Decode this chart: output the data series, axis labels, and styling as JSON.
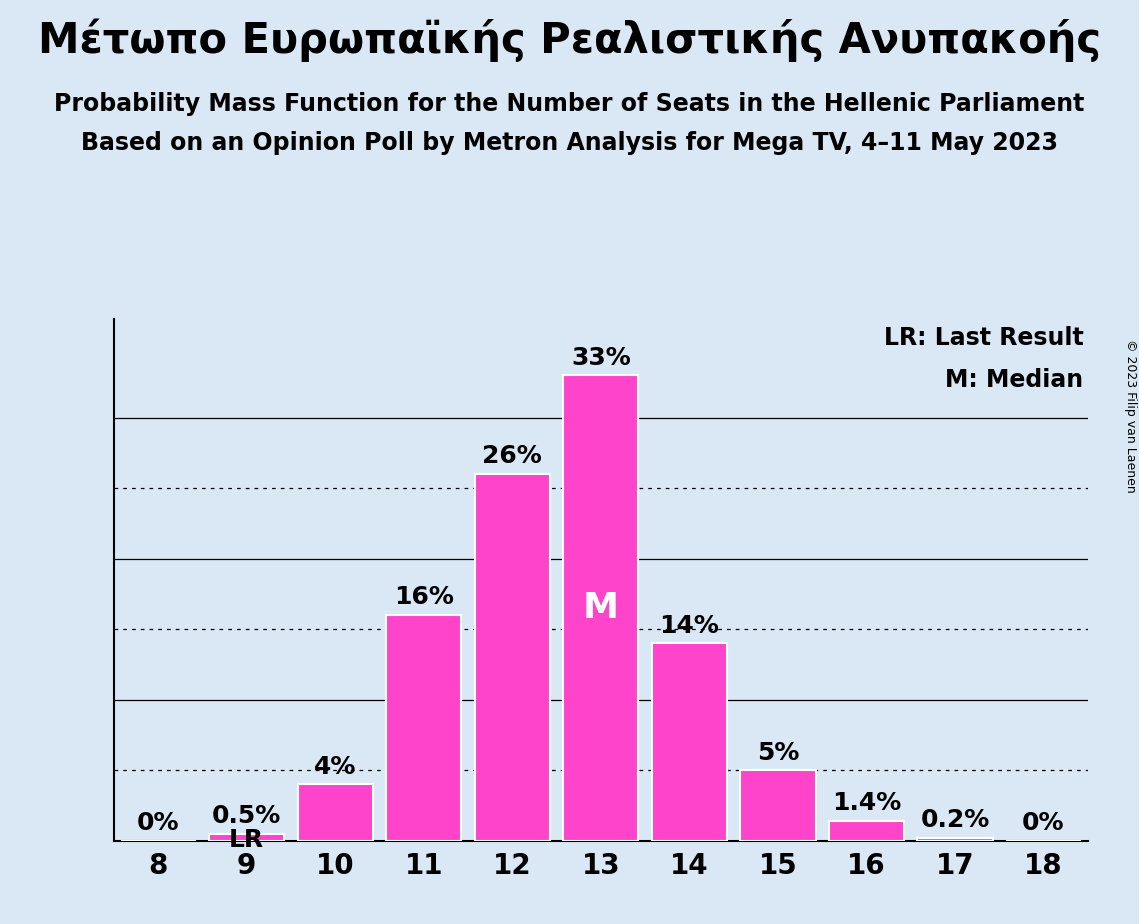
{
  "title_greek": "Μέτωπο Ευρωπαϊκής Ρεαλιστικής Ανυπακοής",
  "subtitle1": "Probability Mass Function for the Number of Seats in the Hellenic Parliament",
  "subtitle2": "Based on an Opinion Poll by Metron Analysis for Mega TV, 4–11 May 2023",
  "copyright_text": "© 2023 Filip van Laenen",
  "legend_line1": "LR: Last Result",
  "legend_line2": "M: Median",
  "categories": [
    8,
    9,
    10,
    11,
    12,
    13,
    14,
    15,
    16,
    17,
    18
  ],
  "values": [
    0.0,
    0.5,
    4.0,
    16.0,
    26.0,
    33.0,
    14.0,
    5.0,
    1.4,
    0.2,
    0.0
  ],
  "bar_color": "#FF44CC",
  "background_color": "#DAE8F5",
  "text_color": "#000000",
  "label_texts": [
    "0%",
    "0.5%",
    "4%",
    "16%",
    "26%",
    "33%",
    "14%",
    "5%",
    "1.4%",
    "0.2%",
    "0%"
  ],
  "median_bar_idx": 5,
  "median_label": "M",
  "lr_bar_idx": 1,
  "lr_label": "LR",
  "dotted_lines": [
    5,
    15,
    25
  ],
  "solid_lines": [
    10,
    20,
    30
  ],
  "ylim": [
    0,
    37
  ],
  "title_fontsize": 30,
  "subtitle_fontsize": 17,
  "bar_label_fontsize": 18,
  "axis_tick_fontsize": 20,
  "legend_fontsize": 17,
  "copyright_fontsize": 9,
  "median_label_fontsize": 26
}
